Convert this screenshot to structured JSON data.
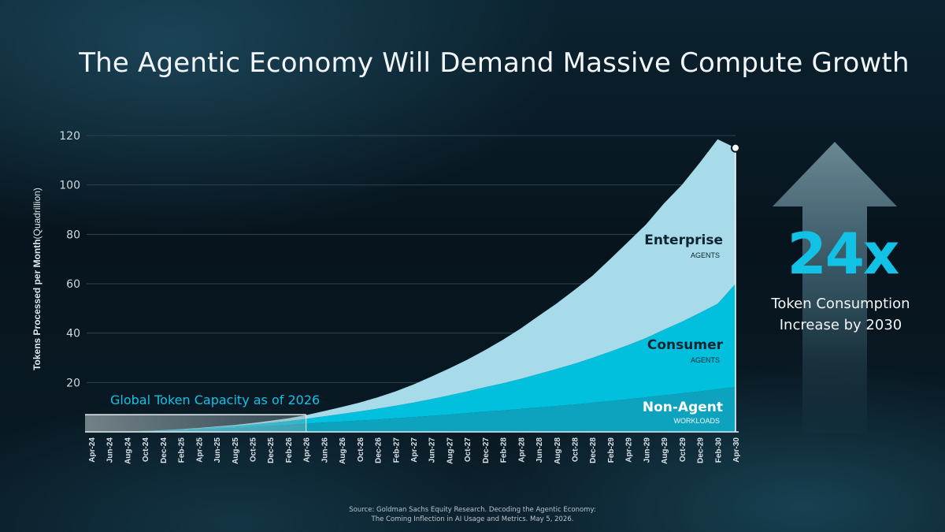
{
  "title": "The Agentic Economy Will Demand Massive Compute Growth",
  "side_callout": {
    "big": "24x",
    "line1": "Token Consumption",
    "line2": "Increase by 2030"
  },
  "source_line1": "Source: Goldman Sachs Equity Research. Decoding the Agentic Economy:",
  "source_line2": "The Coming Inflection in AI Usage and Metrics. May 5, 2026.",
  "colors": {
    "enterprise": "#a8dbe9",
    "consumer": "#00c0de",
    "non_agent": "#0da3be",
    "accent": "#12c2e6"
  },
  "chart_data": {
    "type": "area",
    "stacked": true,
    "ylabel_bold": "Tokens Processed per Month",
    "ylabel_rest": "(Quadrillion)",
    "ylim": [
      0,
      120
    ],
    "yticks": [
      20,
      40,
      60,
      80,
      100,
      120
    ],
    "grid": true,
    "categories": [
      "Apr-24",
      "Jun-24",
      "Aug-24",
      "Oct-24",
      "Dec-24",
      "Feb-25",
      "Apr-25",
      "Jun-25",
      "Aug-25",
      "Oct-25",
      "Dec-25",
      "Feb-26",
      "Apr-26",
      "Jun-26",
      "Aug-26",
      "Oct-26",
      "Dec-26",
      "Feb-27",
      "Apr-27",
      "Jun-27",
      "Aug-27",
      "Oct-27",
      "Dec-27",
      "Feb-28",
      "Apr-28",
      "Jun-28",
      "Aug-28",
      "Oct-28",
      "Dec-28",
      "Feb-29",
      "Apr-29",
      "Jun-29",
      "Aug-29",
      "Oct-29",
      "Dec-29",
      "Feb-30",
      "Apr-30"
    ],
    "series": [
      {
        "name": "Non-Agent",
        "sublabel": "WORKLOADS",
        "values": [
          0,
          0.1,
          0.2,
          0.3,
          0.5,
          0.7,
          1.0,
          1.3,
          1.6,
          2.0,
          2.4,
          2.8,
          3.3,
          3.8,
          4.2,
          4.6,
          5.0,
          5.5,
          6.0,
          6.5,
          7.0,
          7.6,
          8.2,
          8.7,
          9.3,
          9.9,
          10.5,
          11.1,
          11.8,
          12.5,
          13.2,
          14.0,
          14.8,
          15.6,
          16.4,
          17.3,
          18.2
        ]
      },
      {
        "name": "Consumer",
        "sublabel": "AGENTS",
        "values": [
          0,
          0,
          0,
          0.1,
          0.2,
          0.3,
          0.4,
          0.6,
          0.8,
          1.0,
          1.3,
          1.6,
          2.0,
          2.5,
          3.1,
          3.7,
          4.4,
          5.1,
          5.9,
          6.8,
          7.8,
          8.8,
          9.9,
          11.0,
          12.2,
          13.6,
          15.0,
          16.5,
          18.2,
          20.0,
          22.0,
          24.0,
          26.6,
          29.0,
          31.8,
          34.6,
          41.8
        ]
      },
      {
        "name": "Enterprise",
        "sublabel": "AGENTS",
        "values": [
          0,
          0,
          0,
          0,
          0,
          0.1,
          0.2,
          0.3,
          0.4,
          0.6,
          0.8,
          1.1,
          1.5,
          2.1,
          2.8,
          3.6,
          4.6,
          5.8,
          7.3,
          9.1,
          10.9,
          12.8,
          15.0,
          17.6,
          20.4,
          23.5,
          26.5,
          29.9,
          33.2,
          37.5,
          41.8,
          46.0,
          51.1,
          55.4,
          60.8,
          66.6,
          55.0
        ]
      }
    ],
    "end_total": 115,
    "capacity_annotation": {
      "label": "Global Token Capacity as of 2026",
      "value": 7,
      "from": "Apr-24",
      "to": "Apr-26"
    }
  }
}
